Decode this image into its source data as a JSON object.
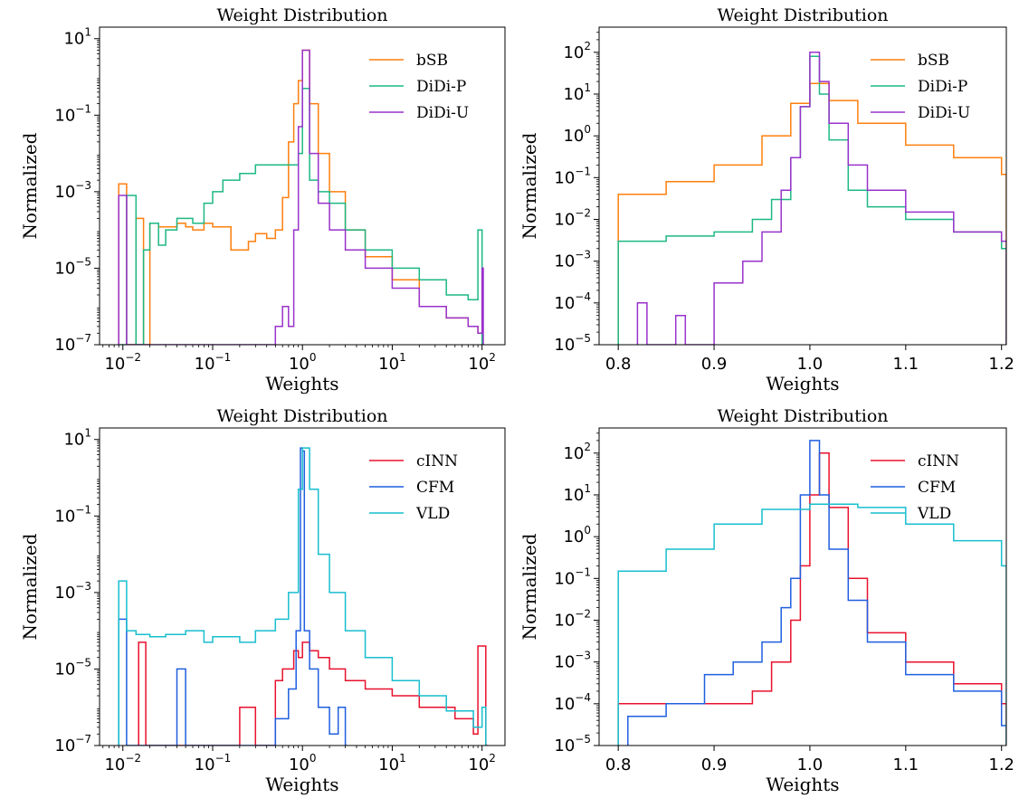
{
  "chart_data": [
    {
      "type": "histogram",
      "title": "Weight Distribution",
      "xlabel": "Weights",
      "ylabel": "Normalized",
      "x_scale": "log",
      "y_scale": "log",
      "xlim": [
        0.0055,
        180
      ],
      "ylim": [
        1e-07,
        20
      ],
      "x_ticks": [
        0.01,
        0.1,
        1,
        10,
        100
      ],
      "x_tick_labels": [
        [
          "10",
          "−2"
        ],
        [
          "10",
          "−1"
        ],
        [
          "10",
          "0"
        ],
        [
          "10",
          "1"
        ],
        [
          "10",
          "2"
        ]
      ],
      "y_ticks": [
        1e-07,
        1e-05,
        0.001,
        0.1,
        10
      ],
      "y_tick_labels": [
        [
          "10",
          "−7"
        ],
        [
          "10",
          "−5"
        ],
        [
          "10",
          "−3"
        ],
        [
          "10",
          "−1"
        ],
        [
          "10",
          "1"
        ]
      ],
      "legend_position": "top-right",
      "grid": false,
      "series": [
        {
          "name": "bSB",
          "color": "#ff7f0e",
          "x": [
            0.009,
            0.011,
            0.014,
            0.017,
            0.02,
            0.025,
            0.03,
            0.04,
            0.05,
            0.06,
            0.08,
            0.1,
            0.13,
            0.16,
            0.2,
            0.25,
            0.3,
            0.4,
            0.5,
            0.6,
            0.7,
            0.8,
            0.9,
            1.0,
            1.2,
            1.5,
            2,
            3,
            5,
            10,
            20,
            40,
            70,
            90,
            100
          ],
          "y": [
            0.0016,
            1e-07,
            0.0002,
            1e-07,
            0.00015,
            0.00012,
            0.00012,
            0.00015,
            0.00012,
            0.0001,
            0.00015,
            0.00012,
            0.00012,
            3e-05,
            3e-05,
            5e-05,
            8e-05,
            6e-05,
            0.0001,
            0.0007,
            0.02,
            0.2,
            0.8,
            5,
            0.2,
            0.01,
            0.001,
            0.0001,
            2e-05,
            5e-06,
            1e-06,
            5e-07,
            3e-07,
            2e-07,
            1e-07
          ]
        },
        {
          "name": "DiDi-P",
          "color": "#1db884",
          "x": [
            0.009,
            0.011,
            0.014,
            0.017,
            0.02,
            0.025,
            0.03,
            0.04,
            0.05,
            0.06,
            0.08,
            0.1,
            0.13,
            0.16,
            0.2,
            0.3,
            0.5,
            0.7,
            0.9,
            1.0,
            1.2,
            1.5,
            2,
            3,
            5,
            10,
            20,
            40,
            70,
            90,
            100
          ],
          "y": [
            1e-07,
            0.0008,
            1e-07,
            3e-05,
            0.00015,
            4e-05,
            0.0001,
            0.0002,
            0.0002,
            0.00015,
            0.0005,
            0.001,
            0.002,
            0.002,
            0.003,
            0.005,
            0.005,
            0.005,
            0.01,
            0.5,
            0.002,
            0.001,
            0.0005,
            0.0001,
            3e-05,
            1e-05,
            5e-06,
            2e-06,
            1.5e-06,
            0.0001,
            1e-07
          ]
        },
        {
          "name": "DiDi-U",
          "color": "#9932cc",
          "x": [
            0.009,
            0.011,
            0.5,
            0.6,
            0.7,
            0.8,
            0.9,
            1.0,
            1.2,
            1.5,
            2,
            3,
            5,
            10,
            20,
            40,
            70,
            90,
            100
          ],
          "y": [
            0.0008,
            1e-07,
            3e-07,
            1e-06,
            3e-07,
            0.0001,
            0.05,
            5,
            0.01,
            0.0005,
            0.0001,
            3e-05,
            1e-05,
            3e-06,
            1e-06,
            5e-07,
            3e-07,
            2e-07,
            1e-05
          ]
        }
      ]
    },
    {
      "type": "histogram",
      "title": "Weight Distribution",
      "xlabel": "Weights",
      "ylabel": "Normalized",
      "x_scale": "linear",
      "y_scale": "log",
      "xlim": [
        0.78,
        1.205
      ],
      "ylim": [
        1e-05,
        400
      ],
      "x_ticks": [
        0.8,
        0.9,
        1.0,
        1.1,
        1.2
      ],
      "x_tick_labels": [
        "0.8",
        "0.9",
        "1.0",
        "1.1",
        "1.2"
      ],
      "y_ticks": [
        1e-05,
        0.0001,
        0.001,
        0.01,
        0.1,
        1,
        10,
        100
      ],
      "y_tick_labels": [
        [
          "10",
          "−5"
        ],
        [
          "10",
          "−4"
        ],
        [
          "10",
          "−3"
        ],
        [
          "10",
          "−2"
        ],
        [
          "10",
          "−1"
        ],
        [
          "10",
          "0"
        ],
        [
          "10",
          "1"
        ],
        [
          "10",
          "2"
        ]
      ],
      "legend_position": "top-right",
      "grid": false,
      "series": [
        {
          "name": "bSB",
          "color": "#ff7f0e",
          "x": [
            0.8,
            0.85,
            0.9,
            0.95,
            0.98,
            1.0,
            1.02,
            1.05,
            1.1,
            1.15,
            1.2
          ],
          "y": [
            0.04,
            0.08,
            0.2,
            1,
            6,
            18,
            7,
            2,
            0.6,
            0.3,
            0.12
          ]
        },
        {
          "name": "DiDi-P",
          "color": "#1db884",
          "x": [
            0.8,
            0.85,
            0.9,
            0.94,
            0.96,
            0.98,
            0.99,
            1.0,
            1.01,
            1.02,
            1.04,
            1.06,
            1.1,
            1.15,
            1.2
          ],
          "y": [
            0.003,
            0.004,
            0.005,
            0.01,
            0.03,
            0.3,
            5,
            80,
            10,
            0.8,
            0.05,
            0.02,
            0.01,
            0.005,
            0.002
          ]
        },
        {
          "name": "DiDi-U",
          "color": "#9932cc",
          "x": [
            0.82,
            0.83,
            0.86,
            0.87,
            0.9,
            0.93,
            0.95,
            0.97,
            0.98,
            0.99,
            1.0,
            1.01,
            1.02,
            1.04,
            1.06,
            1.1,
            1.15,
            1.2
          ],
          "y": [
            0.0001,
            1e-05,
            5e-05,
            1e-05,
            0.0003,
            0.001,
            0.005,
            0.05,
            0.3,
            5,
            100,
            20,
            2,
            0.2,
            0.05,
            0.015,
            0.005,
            0.003
          ]
        }
      ]
    },
    {
      "type": "histogram",
      "title": "Weight Distribution",
      "xlabel": "Weights",
      "ylabel": "Normalized",
      "x_scale": "log",
      "y_scale": "log",
      "xlim": [
        0.0055,
        180
      ],
      "ylim": [
        1e-07,
        20
      ],
      "x_ticks": [
        0.01,
        0.1,
        1,
        10,
        100
      ],
      "x_tick_labels": [
        [
          "10",
          "−2"
        ],
        [
          "10",
          "−1"
        ],
        [
          "10",
          "0"
        ],
        [
          "10",
          "1"
        ],
        [
          "10",
          "2"
        ]
      ],
      "y_ticks": [
        1e-07,
        1e-05,
        0.001,
        0.1,
        10
      ],
      "y_tick_labels": [
        [
          "10",
          "−7"
        ],
        [
          "10",
          "−5"
        ],
        [
          "10",
          "−3"
        ],
        [
          "10",
          "−1"
        ],
        [
          "10",
          "1"
        ]
      ],
      "legend_position": "top-right",
      "grid": false,
      "series": [
        {
          "name": "cINN",
          "color": "#e8112d",
          "x": [
            0.015,
            0.018,
            0.2,
            0.3,
            0.5,
            0.6,
            0.8,
            0.9,
            1.0,
            1.2,
            1.5,
            2,
            3,
            5,
            10,
            20,
            50,
            80,
            90,
            110
          ],
          "y": [
            5e-05,
            1e-07,
            1e-06,
            1e-07,
            5e-06,
            1e-05,
            3e-05,
            2e-05,
            5e-05,
            3e-05,
            2e-05,
            1e-05,
            5e-06,
            3e-06,
            2e-06,
            1e-06,
            5e-07,
            2e-07,
            4e-05,
            1e-07
          ]
        },
        {
          "name": "CFM",
          "color": "#1f5fe0",
          "x": [
            0.009,
            0.011,
            0.04,
            0.05,
            0.5,
            0.7,
            0.85,
            0.95,
            1.0,
            1.05,
            1.2,
            1.5,
            2,
            2.5,
            3
          ],
          "y": [
            0.0002,
            1e-07,
            1e-05,
            1e-07,
            5e-07,
            3e-06,
            0.0001,
            6,
            5,
            0.0001,
            1e-05,
            1e-06,
            2e-07,
            1e-06,
            1e-07
          ]
        },
        {
          "name": "VLD",
          "color": "#17becf",
          "x": [
            0.009,
            0.011,
            0.014,
            0.02,
            0.03,
            0.05,
            0.08,
            0.1,
            0.2,
            0.3,
            0.5,
            0.7,
            0.9,
            1.0,
            1.2,
            1.5,
            2,
            3,
            5,
            10,
            20,
            40,
            80,
            100,
            110
          ],
          "y": [
            0.002,
            0.0001,
            8e-05,
            7e-05,
            8e-05,
            0.0001,
            5e-05,
            7e-05,
            5e-05,
            0.0001,
            0.0002,
            0.001,
            0.5,
            6,
            0.5,
            0.01,
            0.001,
            0.0001,
            2e-05,
            5e-06,
            2e-06,
            8e-07,
            3e-07,
            1e-06,
            1e-07
          ]
        }
      ]
    },
    {
      "type": "histogram",
      "title": "Weight Distribution",
      "xlabel": "Weights",
      "ylabel": "Normalized",
      "x_scale": "linear",
      "y_scale": "log",
      "xlim": [
        0.78,
        1.205
      ],
      "ylim": [
        1e-05,
        400
      ],
      "x_ticks": [
        0.8,
        0.9,
        1.0,
        1.1,
        1.2
      ],
      "x_tick_labels": [
        "0.8",
        "0.9",
        "1.0",
        "1.1",
        "1.2"
      ],
      "y_ticks": [
        1e-05,
        0.0001,
        0.001,
        0.01,
        0.1,
        1,
        10,
        100
      ],
      "y_tick_labels": [
        [
          "10",
          "−5"
        ],
        [
          "10",
          "−4"
        ],
        [
          "10",
          "−3"
        ],
        [
          "10",
          "−2"
        ],
        [
          "10",
          "−1"
        ],
        [
          "10",
          "0"
        ],
        [
          "10",
          "1"
        ],
        [
          "10",
          "2"
        ]
      ],
      "legend_position": "top-right",
      "grid": false,
      "series": [
        {
          "name": "cINN",
          "color": "#e8112d",
          "x": [
            0.8,
            0.85,
            0.9,
            0.94,
            0.96,
            0.98,
            0.99,
            1.0,
            1.01,
            1.02,
            1.04,
            1.06,
            1.1,
            1.15,
            1.2
          ],
          "y": [
            0.0001,
            0.0001,
            0.0001,
            0.0002,
            0.001,
            0.01,
            0.2,
            10,
            100,
            5,
            0.1,
            0.005,
            0.001,
            0.0003,
            0.0001
          ]
        },
        {
          "name": "CFM",
          "color": "#1f5fe0",
          "x": [
            0.81,
            0.85,
            0.89,
            0.92,
            0.95,
            0.97,
            0.98,
            0.99,
            1.0,
            1.01,
            1.02,
            1.04,
            1.06,
            1.1,
            1.15,
            1.2
          ],
          "y": [
            5e-05,
            0.0001,
            0.0005,
            0.001,
            0.003,
            0.02,
            0.1,
            10,
            200,
            10,
            0.5,
            0.03,
            0.003,
            0.0005,
            0.0002,
            3e-05
          ]
        },
        {
          "name": "VLD",
          "color": "#17becf",
          "x": [
            0.8,
            0.85,
            0.9,
            0.95,
            1.0,
            1.05,
            1.1,
            1.15,
            1.2
          ],
          "y": [
            0.15,
            0.5,
            2,
            4.5,
            6,
            5,
            2,
            0.8,
            0.2
          ]
        }
      ]
    }
  ]
}
